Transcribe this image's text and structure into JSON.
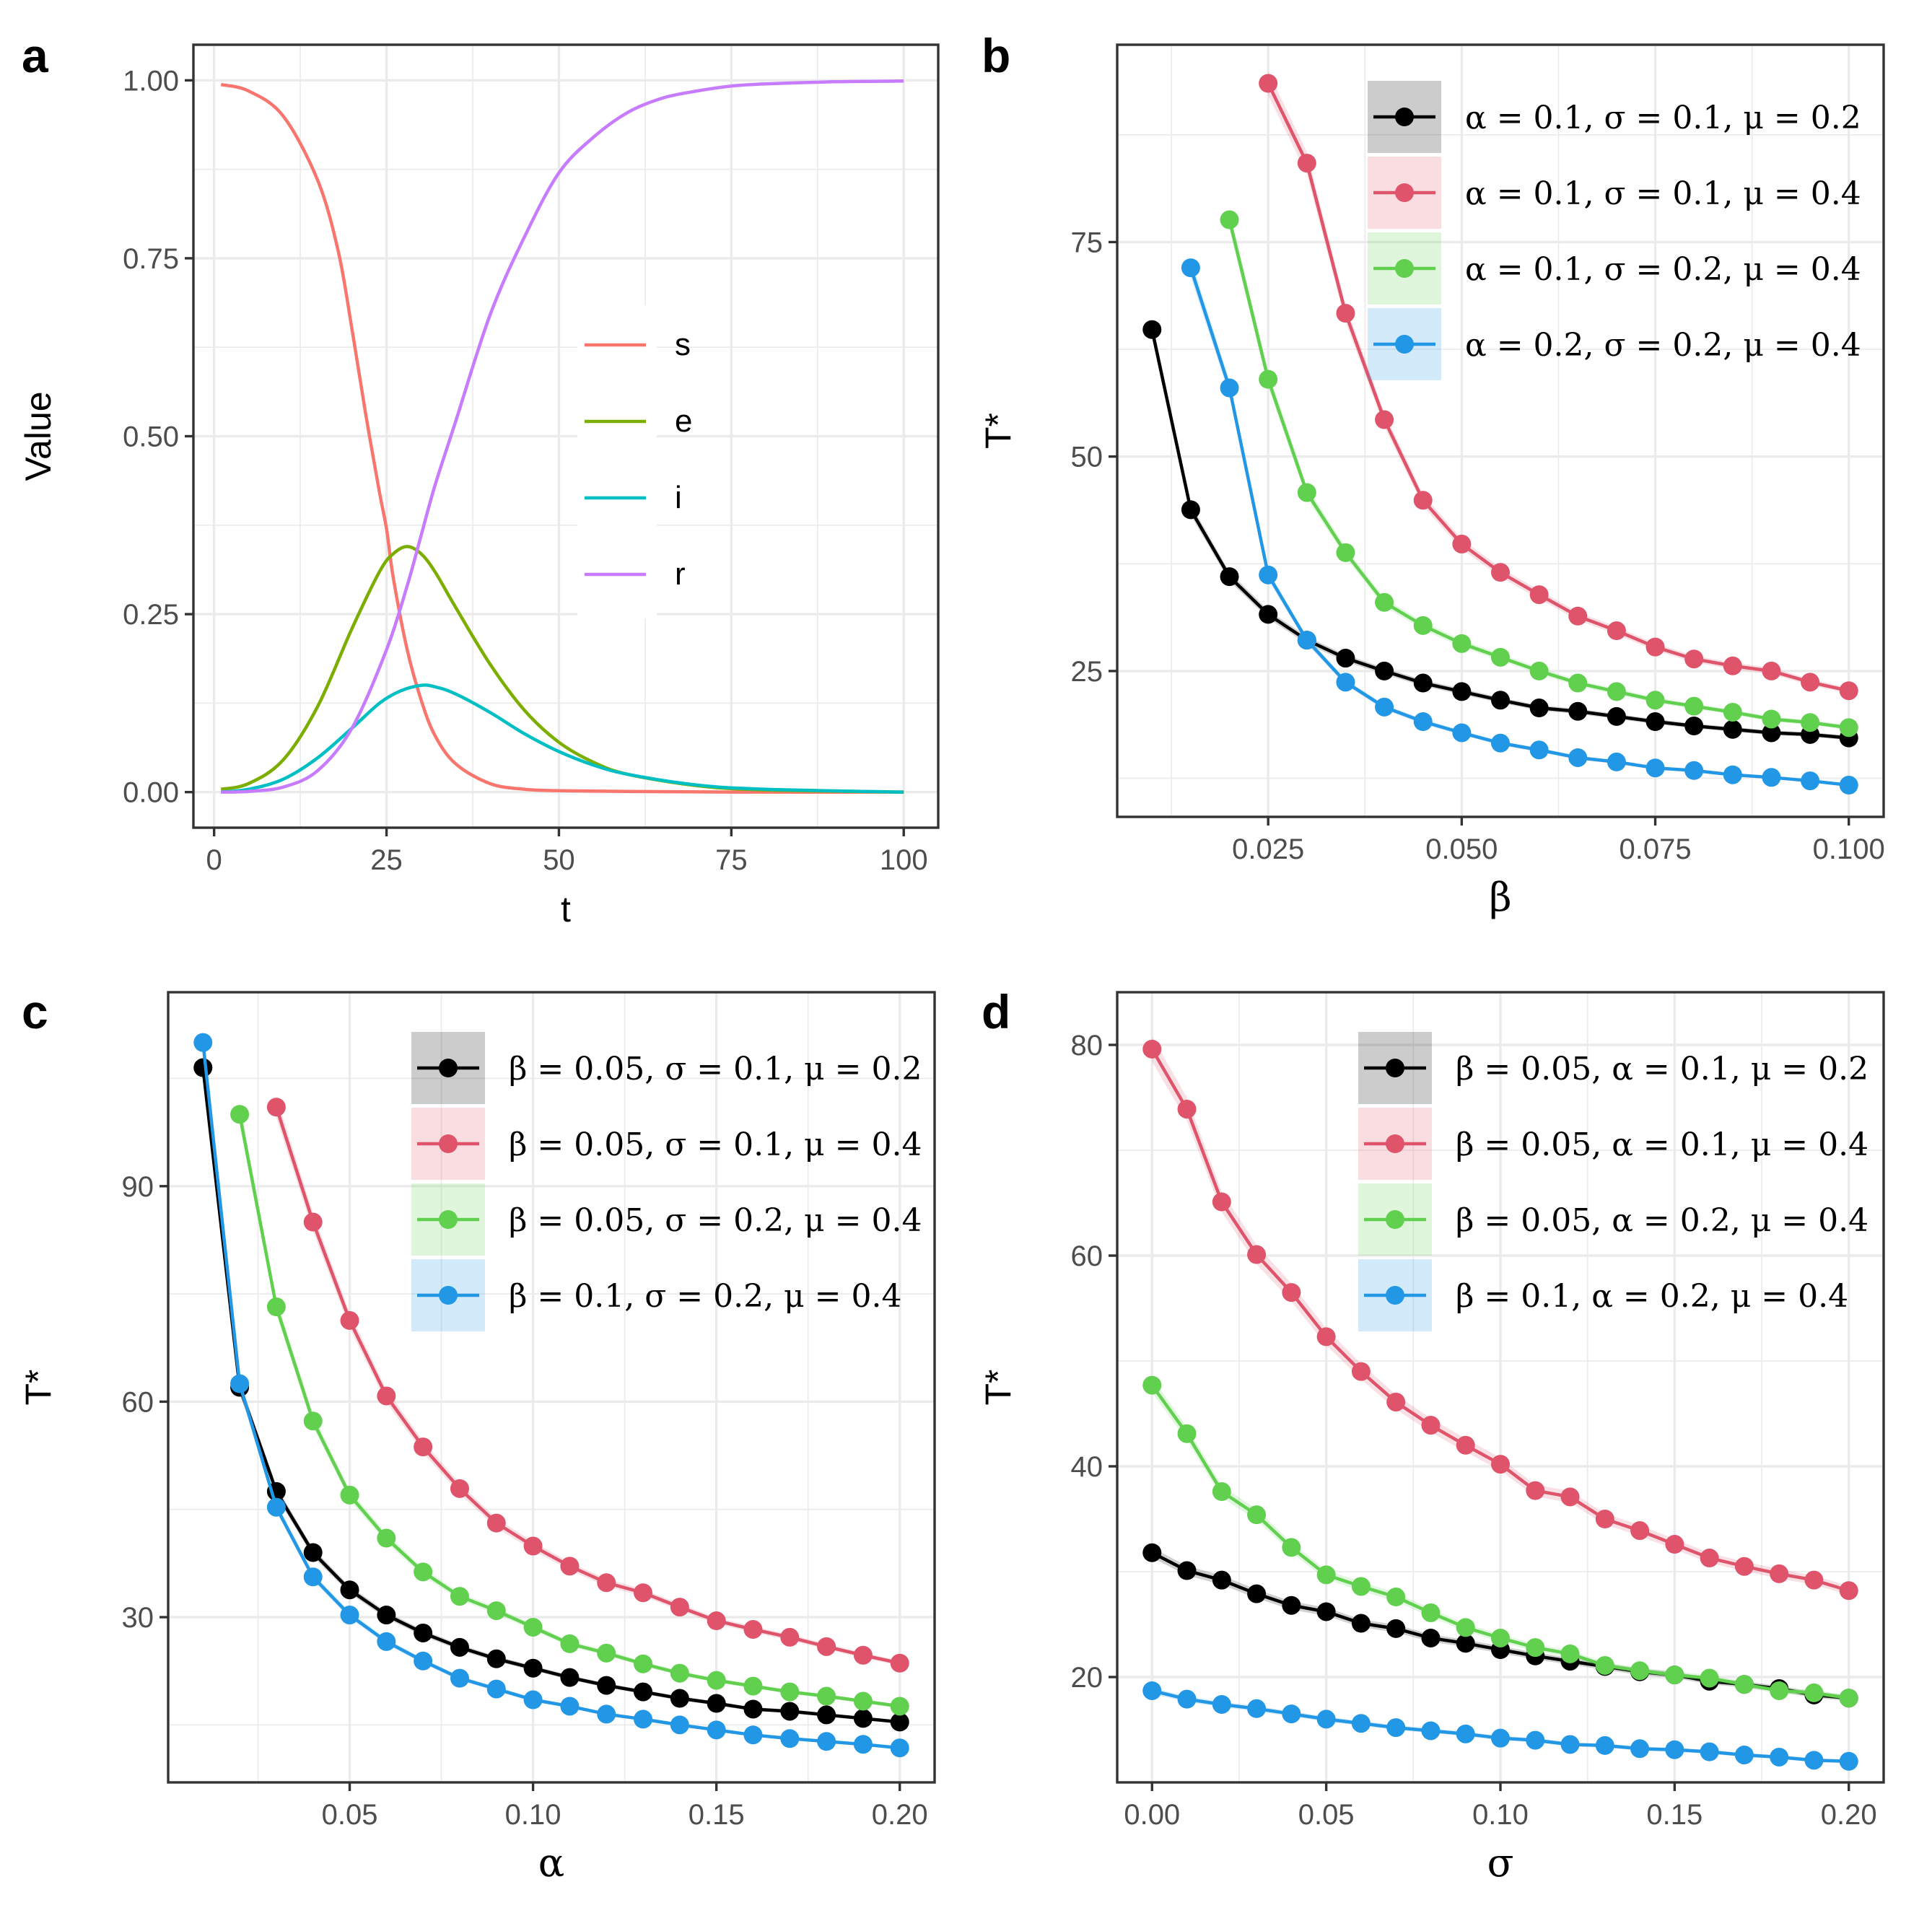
{
  "colors": {
    "s": "#F8766D",
    "e": "#7CAE00",
    "i": "#00BFC4",
    "r": "#C77CFF",
    "black": "#000000",
    "red": "#DF536B",
    "green": "#61D04F",
    "blue": "#2297E6"
  },
  "chart_data": [
    {
      "id": "a",
      "panel_label": "a",
      "type": "line",
      "xlabel": "t",
      "ylabel": "Value",
      "xlim": [
        -3,
        105
      ],
      "ylim": [
        -0.05,
        1.05
      ],
      "xticks": [
        0,
        25,
        50,
        75,
        100
      ],
      "xtick_labels": [
        "0",
        "25",
        "50",
        "75",
        "100"
      ],
      "yticks": [
        0,
        0.25,
        0.5,
        0.75,
        1.0
      ],
      "ytick_labels": [
        "0.00",
        "0.25",
        "0.50",
        "0.75",
        "1.00"
      ],
      "legend_position": "center-right",
      "series": [
        {
          "name": "s",
          "color": "#F8766D",
          "x": [
            1,
            5,
            10,
            15,
            18,
            20,
            22,
            24,
            25,
            26,
            28,
            30,
            32,
            35,
            40,
            45,
            50,
            60,
            75,
            100
          ],
          "y": [
            0.994,
            0.985,
            0.95,
            0.86,
            0.76,
            0.65,
            0.53,
            0.42,
            0.37,
            0.3,
            0.2,
            0.13,
            0.08,
            0.04,
            0.012,
            0.004,
            0.002,
            0.001,
            0.0,
            0.0
          ]
        },
        {
          "name": "e",
          "color": "#7CAE00",
          "x": [
            1,
            5,
            10,
            15,
            20,
            24,
            26,
            28,
            30,
            32,
            35,
            40,
            45,
            50,
            55,
            60,
            70,
            80,
            100
          ],
          "y": [
            0.004,
            0.012,
            0.045,
            0.12,
            0.23,
            0.31,
            0.335,
            0.345,
            0.335,
            0.31,
            0.26,
            0.18,
            0.115,
            0.07,
            0.042,
            0.025,
            0.009,
            0.003,
            0.0
          ]
        },
        {
          "name": "i",
          "color": "#00BFC4",
          "x": [
            1,
            5,
            10,
            15,
            20,
            24,
            27,
            30,
            32,
            35,
            40,
            45,
            50,
            55,
            60,
            70,
            80,
            100
          ],
          "y": [
            0.0,
            0.004,
            0.018,
            0.048,
            0.09,
            0.125,
            0.142,
            0.15,
            0.148,
            0.138,
            0.112,
            0.082,
            0.057,
            0.038,
            0.025,
            0.01,
            0.004,
            0.0
          ]
        },
        {
          "name": "r",
          "color": "#C77CFF",
          "x": [
            1,
            5,
            10,
            15,
            20,
            25,
            28,
            30,
            32,
            35,
            40,
            45,
            50,
            55,
            60,
            65,
            70,
            75,
            80,
            90,
            100
          ],
          "y": [
            0.0,
            0.001,
            0.007,
            0.03,
            0.09,
            0.2,
            0.29,
            0.36,
            0.43,
            0.52,
            0.67,
            0.78,
            0.87,
            0.92,
            0.955,
            0.975,
            0.985,
            0.992,
            0.995,
            0.998,
            0.999
          ]
        }
      ]
    },
    {
      "id": "b",
      "panel_label": "b",
      "type": "line",
      "xlabel": "β",
      "ylabel": "T*",
      "xlim": [
        0.0055,
        0.1045
      ],
      "ylim": [
        8,
        98
      ],
      "xticks": [
        0.025,
        0.05,
        0.075,
        0.1
      ],
      "xtick_labels": [
        "0.025",
        "0.050",
        "0.075",
        "0.100"
      ],
      "yticks": [
        25,
        50,
        75
      ],
      "ytick_labels": [
        "25",
        "50",
        "75"
      ],
      "legend_position": "top-right",
      "series": [
        {
          "name": "α = 0.1, σ = 0.1, μ = 0.2",
          "color": "#000000",
          "x": [
            0.01,
            0.015,
            0.02,
            0.025,
            0.03,
            0.035,
            0.04,
            0.045,
            0.05,
            0.055,
            0.06,
            0.065,
            0.07,
            0.075,
            0.08,
            0.085,
            0.09,
            0.095,
            0.1
          ],
          "y": [
            64.8,
            43.8,
            36.0,
            31.6,
            28.6,
            26.5,
            25.0,
            23.6,
            22.6,
            21.6,
            20.7,
            20.3,
            19.7,
            19.1,
            18.6,
            18.2,
            17.8,
            17.6,
            17.2
          ]
        },
        {
          "name": "α = 0.1, σ = 0.1, μ = 0.4",
          "color": "#DF536B",
          "x": [
            0.025,
            0.03,
            0.035,
            0.04,
            0.045,
            0.05,
            0.055,
            0.06,
            0.065,
            0.07,
            0.075,
            0.08,
            0.085,
            0.09,
            0.095,
            0.1
          ],
          "y": [
            93.5,
            84.2,
            66.7,
            54.3,
            44.9,
            39.8,
            36.5,
            33.9,
            31.4,
            29.7,
            27.8,
            26.4,
            25.6,
            25.0,
            23.7,
            22.7
          ]
        },
        {
          "name": "α = 0.1, σ = 0.2, μ = 0.4",
          "color": "#61D04F",
          "x": [
            0.02,
            0.025,
            0.03,
            0.035,
            0.04,
            0.045,
            0.05,
            0.055,
            0.06,
            0.065,
            0.07,
            0.075,
            0.08,
            0.085,
            0.09,
            0.095,
            0.1
          ],
          "y": [
            77.6,
            59.0,
            45.8,
            38.8,
            33.0,
            30.3,
            28.2,
            26.6,
            25.0,
            23.6,
            22.6,
            21.6,
            20.9,
            20.2,
            19.4,
            19.0,
            18.4
          ]
        },
        {
          "name": "α = 0.2, σ = 0.2, μ = 0.4",
          "color": "#2297E6",
          "x": [
            0.015,
            0.02,
            0.025,
            0.03,
            0.035,
            0.04,
            0.045,
            0.05,
            0.055,
            0.06,
            0.065,
            0.07,
            0.075,
            0.08,
            0.085,
            0.09,
            0.095,
            0.1
          ],
          "y": [
            72.0,
            58.0,
            36.2,
            28.6,
            23.7,
            20.8,
            19.1,
            17.8,
            16.6,
            15.8,
            14.9,
            14.4,
            13.7,
            13.4,
            12.9,
            12.6,
            12.2,
            11.7
          ]
        }
      ]
    },
    {
      "id": "c",
      "panel_label": "c",
      "type": "line",
      "xlabel": "α",
      "ylabel": "T*",
      "xlim": [
        0.0005,
        0.2095
      ],
      "ylim": [
        7,
        117
      ],
      "xticks": [
        0.05,
        0.1,
        0.15,
        0.2
      ],
      "xtick_labels": [
        "0.05",
        "0.10",
        "0.15",
        "0.20"
      ],
      "yticks": [
        30,
        60,
        90
      ],
      "ytick_labels": [
        "30",
        "60",
        "90"
      ],
      "legend_position": "top-right",
      "series": [
        {
          "name": "β = 0.05, σ = 0.1, μ = 0.2",
          "color": "#000000",
          "x": [
            0.01,
            0.02,
            0.03,
            0.04,
            0.05,
            0.06,
            0.07,
            0.08,
            0.09,
            0.1,
            0.11,
            0.12,
            0.13,
            0.14,
            0.15,
            0.16,
            0.17,
            0.18,
            0.19,
            0.2
          ],
          "y": [
            106.5,
            62.0,
            47.5,
            39.0,
            33.8,
            30.3,
            27.8,
            25.8,
            24.2,
            22.9,
            21.6,
            20.5,
            19.6,
            18.7,
            18.0,
            17.2,
            16.9,
            16.4,
            15.9,
            15.4
          ]
        },
        {
          "name": "β = 0.05, σ = 0.1, μ = 0.4",
          "color": "#DF536B",
          "x": [
            0.03,
            0.04,
            0.05,
            0.06,
            0.07,
            0.08,
            0.09,
            0.1,
            0.11,
            0.12,
            0.13,
            0.14,
            0.15,
            0.16,
            0.17,
            0.18,
            0.19,
            0.2
          ],
          "y": [
            101.0,
            85.0,
            71.3,
            60.8,
            53.7,
            47.9,
            43.1,
            39.9,
            37.1,
            34.8,
            33.4,
            31.4,
            29.5,
            28.3,
            27.2,
            25.9,
            24.7,
            23.6
          ]
        },
        {
          "name": "β = 0.05, σ = 0.2, μ = 0.4",
          "color": "#61D04F",
          "x": [
            0.02,
            0.03,
            0.04,
            0.05,
            0.06,
            0.07,
            0.08,
            0.09,
            0.1,
            0.11,
            0.12,
            0.13,
            0.14,
            0.15,
            0.16,
            0.17,
            0.18,
            0.19,
            0.2
          ],
          "y": [
            100.0,
            73.2,
            57.3,
            47.0,
            41.0,
            36.3,
            32.9,
            30.9,
            28.6,
            26.3,
            25.0,
            23.5,
            22.2,
            21.2,
            20.4,
            19.6,
            19.0,
            18.3,
            17.6
          ]
        },
        {
          "name": "β = 0.1, σ = 0.2, μ = 0.4",
          "color": "#2297E6",
          "x": [
            0.01,
            0.02,
            0.03,
            0.04,
            0.05,
            0.06,
            0.07,
            0.08,
            0.09,
            0.1,
            0.11,
            0.12,
            0.13,
            0.14,
            0.15,
            0.16,
            0.17,
            0.18,
            0.19,
            0.2
          ],
          "y": [
            110.0,
            62.5,
            45.3,
            35.6,
            30.3,
            26.6,
            23.9,
            21.5,
            20.0,
            18.5,
            17.6,
            16.5,
            15.8,
            15.0,
            14.3,
            13.6,
            13.1,
            12.7,
            12.3,
            11.8
          ]
        }
      ]
    },
    {
      "id": "d",
      "panel_label": "d",
      "type": "line",
      "xlabel": "σ",
      "ylabel": "T*",
      "xlim": [
        -0.01,
        0.21
      ],
      "ylim": [
        10,
        85
      ],
      "xticks": [
        0,
        0.05,
        0.1,
        0.15,
        0.2
      ],
      "xtick_labels": [
        "0.00",
        "0.05",
        "0.10",
        "0.15",
        "0.20"
      ],
      "yticks": [
        20,
        40,
        60,
        80
      ],
      "ytick_labels": [
        "20",
        "40",
        "60",
        "80"
      ],
      "legend_position": "top-right",
      "series": [
        {
          "name": "β = 0.05, α = 0.1, μ = 0.2",
          "color": "#000000",
          "x": [
            0,
            0.01,
            0.02,
            0.03,
            0.04,
            0.05,
            0.06,
            0.07,
            0.08,
            0.09,
            0.1,
            0.11,
            0.12,
            0.13,
            0.14,
            0.15,
            0.16,
            0.17,
            0.18,
            0.19,
            0.2
          ],
          "y": [
            31.8,
            30.1,
            29.2,
            27.9,
            26.8,
            26.2,
            25.1,
            24.6,
            23.7,
            23.2,
            22.6,
            22.0,
            21.5,
            21.0,
            20.5,
            20.2,
            19.6,
            19.3,
            18.9,
            18.3,
            18.0
          ]
        },
        {
          "name": "β = 0.05, α = 0.1, μ = 0.4",
          "color": "#DF536B",
          "x": [
            0,
            0.01,
            0.02,
            0.03,
            0.04,
            0.05,
            0.06,
            0.07,
            0.08,
            0.09,
            0.1,
            0.11,
            0.12,
            0.13,
            0.14,
            0.15,
            0.16,
            0.17,
            0.18,
            0.19,
            0.2
          ],
          "y": [
            79.6,
            73.9,
            65.1,
            60.1,
            56.5,
            52.3,
            49.0,
            46.1,
            43.9,
            42.0,
            40.2,
            37.7,
            37.1,
            35.0,
            33.9,
            32.6,
            31.3,
            30.5,
            29.8,
            29.2,
            28.2
          ]
        },
        {
          "name": "β = 0.05, α = 0.2, μ = 0.4",
          "color": "#61D04F",
          "x": [
            0,
            0.01,
            0.02,
            0.03,
            0.04,
            0.05,
            0.06,
            0.07,
            0.08,
            0.09,
            0.1,
            0.11,
            0.12,
            0.13,
            0.14,
            0.15,
            0.16,
            0.17,
            0.18,
            0.19,
            0.2
          ],
          "y": [
            47.7,
            43.1,
            37.6,
            35.4,
            32.3,
            29.7,
            28.6,
            27.6,
            26.1,
            24.7,
            23.7,
            22.8,
            22.2,
            21.1,
            20.6,
            20.2,
            19.9,
            19.3,
            18.7,
            18.5,
            18.0
          ]
        },
        {
          "name": "β = 0.1, α = 0.2, μ = 0.4",
          "color": "#2297E6",
          "x": [
            0,
            0.01,
            0.02,
            0.03,
            0.04,
            0.05,
            0.06,
            0.07,
            0.08,
            0.09,
            0.1,
            0.11,
            0.12,
            0.13,
            0.14,
            0.15,
            0.16,
            0.17,
            0.18,
            0.19,
            0.2
          ],
          "y": [
            18.7,
            17.9,
            17.4,
            17.0,
            16.5,
            16.0,
            15.6,
            15.2,
            14.9,
            14.6,
            14.2,
            14.0,
            13.6,
            13.5,
            13.2,
            13.1,
            12.9,
            12.6,
            12.4,
            12.1,
            12.0
          ]
        }
      ]
    }
  ]
}
